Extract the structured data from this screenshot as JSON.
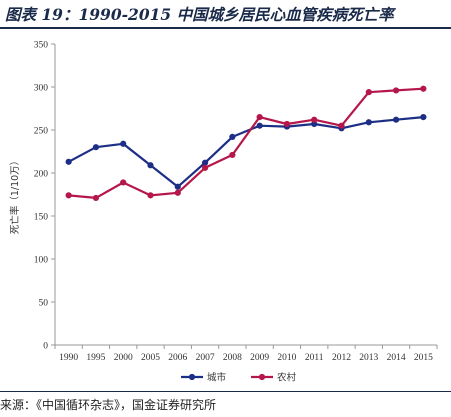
{
  "header": {
    "title": "图表 19：1990-2015 中国城乡居民心血管疾病死亡率"
  },
  "footer": {
    "source": "来源：《中国循环杂志》，国金证券研究所"
  },
  "colors": {
    "city": "#1c2e86",
    "rural": "#b5174a",
    "axis": "#999999",
    "title": "#1a2a4a"
  },
  "chart_data": {
    "type": "line",
    "title": "",
    "xlabel": "",
    "ylabel": "死亡率（1/10万）",
    "categories": [
      "1990",
      "1995",
      "2000",
      "2005",
      "2006",
      "2007",
      "2008",
      "2009",
      "2010",
      "2011",
      "2012",
      "2013",
      "2014",
      "2015"
    ],
    "ylim": [
      0,
      350
    ],
    "yticks": [
      0,
      50,
      100,
      150,
      200,
      250,
      300,
      350
    ],
    "grid": false,
    "legend_position": "bottom",
    "series": [
      {
        "name": "城市",
        "color": "#1c2e86",
        "values": [
          213,
          230,
          234,
          209,
          184,
          212,
          242,
          255,
          254,
          257,
          252,
          259,
          262,
          265
        ]
      },
      {
        "name": "农村",
        "color": "#b5174a",
        "values": [
          174,
          171,
          189,
          174,
          177,
          206,
          221,
          265,
          257,
          262,
          255,
          294,
          296,
          298
        ]
      }
    ]
  }
}
